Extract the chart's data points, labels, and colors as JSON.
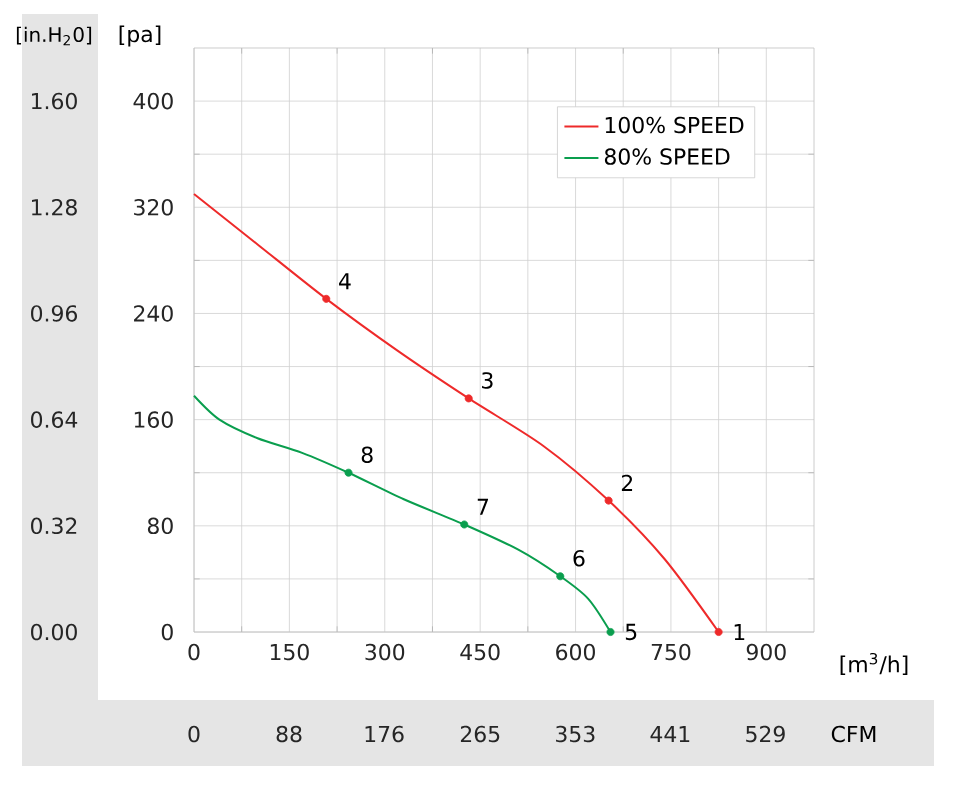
{
  "chart_data": {
    "type": "line",
    "xlabel": "[m$^{3}$/h]",
    "ylabel": "[pa]",
    "y2label": "[in.H$_{2}$0]",
    "x2label": "CFM",
    "xlim": [
      0,
      975
    ],
    "xticks": [
      0,
      150,
      300,
      450,
      600,
      750,
      900
    ],
    "ylim": [
      0,
      440
    ],
    "yticks": [
      0,
      80,
      160,
      240,
      320,
      400
    ],
    "y2lim": [
      0,
      1.76
    ],
    "y2ticks": [
      {
        "value": 0,
        "label": "0.00"
      },
      {
        "value": 0.32,
        "label": "0.32"
      },
      {
        "value": 0.64,
        "label": "0.64"
      },
      {
        "value": 0.96,
        "label": "0.96"
      },
      {
        "value": 1.28,
        "label": "1.28"
      },
      {
        "value": 1.6,
        "label": "1.60"
      }
    ],
    "x2lim": [
      0,
      574
    ],
    "x2ticks": [
      0,
      88,
      176,
      265,
      353,
      441,
      529
    ],
    "grid": true,
    "legend": "top right",
    "series": [
      {
        "name": "100% SPEED",
        "color": "#ee2a2a",
        "line_style": "solid",
        "marker": "none",
        "x": [
          0,
          100,
          208,
          320,
          432,
          550,
          652,
          740,
          825
        ],
        "values": [
          330,
          292,
          251,
          212,
          176,
          140,
          99,
          55,
          0
        ]
      },
      {
        "name": "80% SPEED",
        "color": "#0a9e4e",
        "line_style": "solid",
        "marker": "none",
        "x": [
          0,
          40,
          100,
          170,
          243,
          330,
          425,
          510,
          576,
          620,
          655
        ],
        "values": [
          178,
          160,
          146,
          135,
          120,
          100,
          81,
          62,
          42,
          25,
          0
        ]
      },
      {
        "type": "scatter",
        "color": "#ee2a2a",
        "marker": "circle",
        "x": [
          825,
          652,
          432,
          208
        ],
        "values": [
          0,
          99,
          176,
          251
        ]
      },
      {
        "type": "scatter",
        "color": "#0a9e4e",
        "marker": "circle",
        "x": [
          655,
          576,
          425,
          243
        ],
        "values": [
          0,
          42,
          81,
          120
        ]
      }
    ],
    "annotations": [
      {
        "text": "1",
        "x": 825,
        "y": 0
      },
      {
        "text": "2",
        "x": 652,
        "y": 99
      },
      {
        "text": "3",
        "x": 432,
        "y": 176
      },
      {
        "text": "4",
        "x": 208,
        "y": 251
      },
      {
        "text": "5",
        "x": 655,
        "y": 0
      },
      {
        "text": "6",
        "x": 576,
        "y": 42
      },
      {
        "text": "7",
        "x": 425,
        "y": 81
      },
      {
        "text": "8",
        "x": 243,
        "y": 120
      }
    ]
  }
}
